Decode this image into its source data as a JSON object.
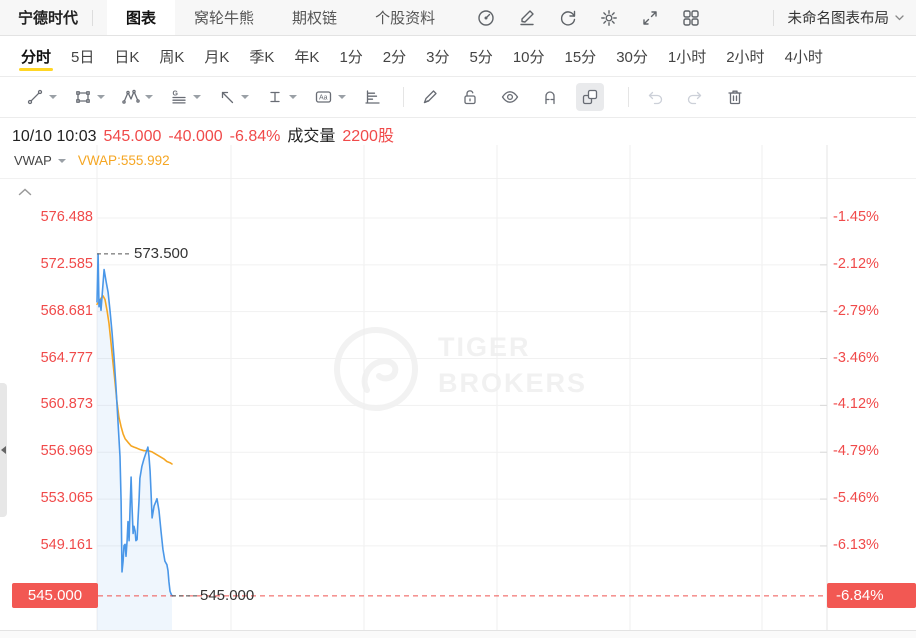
{
  "colors": {
    "red_text": "#f04a4a",
    "red_badge": "#f25853",
    "red_dashed_line": "#ef5350",
    "price_line_blue": "#4a97e8",
    "vwap_orange": "#f5a623",
    "active_tab_underline_yellow": "#ffd625"
  },
  "top_bar": {
    "symbol": "宁德时代",
    "tabs": [
      {
        "label": "图表",
        "active": true
      },
      {
        "label": "窝轮牛熊",
        "active": false
      },
      {
        "label": "期权链",
        "active": false
      },
      {
        "label": "个股资料",
        "active": false
      }
    ],
    "icons": [
      "gauge-icon",
      "edit-note-icon",
      "refresh-icon",
      "settings-gear-icon",
      "fullscreen-icon",
      "multi-layout-grid-icon"
    ],
    "layout_name": "未命名图表布局"
  },
  "timeframes": [
    {
      "label": "分时",
      "active": true
    },
    {
      "label": "5日"
    },
    {
      "label": "日K"
    },
    {
      "label": "周K"
    },
    {
      "label": "月K"
    },
    {
      "label": "季K"
    },
    {
      "label": "年K"
    },
    {
      "label": "1分"
    },
    {
      "label": "2分"
    },
    {
      "label": "3分"
    },
    {
      "label": "5分"
    },
    {
      "label": "10分"
    },
    {
      "label": "15分"
    },
    {
      "label": "30分"
    },
    {
      "label": "1小时"
    },
    {
      "label": "2小时"
    },
    {
      "label": "4小时"
    }
  ],
  "toolbar": {
    "tools": [
      "trend-line",
      "shape-rectangle",
      "pattern-waves",
      "gann-fib-lines",
      "arrow-marker",
      "price-range",
      "text-label",
      "volume-profile"
    ],
    "actions": [
      {
        "name": "draw-brush"
      },
      {
        "name": "lock-drawings"
      },
      {
        "name": "show-hide-drawings"
      },
      {
        "name": "magnet-mode"
      },
      {
        "name": "group-shapes",
        "active": true
      },
      {
        "name": "undo",
        "disabled": true
      },
      {
        "name": "redo",
        "disabled": true
      },
      {
        "name": "delete-drawings"
      }
    ]
  },
  "quote": {
    "datetime": "10/10 10:03",
    "price": "545.000",
    "change": "-40.000",
    "change_pct": "-6.84%",
    "volume_label": "成交量",
    "volume": "2200股"
  },
  "indicator": {
    "name": "VWAP",
    "value": "VWAP:555.992"
  },
  "watermark": {
    "line1": "TIGER",
    "line2": "BROKERS"
  },
  "chart_data": {
    "type": "line",
    "x_unit": "minutes since session open 09:30, session shown ends 10/10 10:03",
    "grid": true,
    "ylim": [
      543.5,
      578.5
    ],
    "y_axis_left_ticks": [
      "576.488",
      "572.585",
      "568.681",
      "564.777",
      "560.873",
      "556.969",
      "553.065",
      "549.161"
    ],
    "y_axis_left_badge": "545.000",
    "y_axis_right_ticks": [
      "-1.45%",
      "-2.12%",
      "-2.79%",
      "-3.46%",
      "-4.12%",
      "-4.79%",
      "-5.46%",
      "-6.13%"
    ],
    "y_axis_right_badge": "-6.84%",
    "annotations": {
      "high_value": 573.5,
      "high_label": "573.500",
      "last_value": 545.0,
      "last_label": "545.000"
    },
    "series": [
      {
        "name": "price",
        "color": "#4a97e8",
        "fill": "rgba(74,151,232,0.09)",
        "points": [
          [
            0,
            569.5
          ],
          [
            0.5,
            573.5
          ],
          [
            0.9,
            569.1
          ],
          [
            1.4,
            569.7
          ],
          [
            1.8,
            568.8
          ],
          [
            3.2,
            572.2
          ],
          [
            4.1,
            571.2
          ],
          [
            5.0,
            570.3
          ],
          [
            5.9,
            568.7
          ],
          [
            6.8,
            567.0
          ],
          [
            7.7,
            564.9
          ],
          [
            8.6,
            562.4
          ],
          [
            9.5,
            559.5
          ],
          [
            10.4,
            556.6
          ],
          [
            10.9,
            552.9
          ],
          [
            11.3,
            547.0
          ],
          [
            11.8,
            547.9
          ],
          [
            12.2,
            549.2
          ],
          [
            12.7,
            549.3
          ],
          [
            13.1,
            548.3
          ],
          [
            13.6,
            549.6
          ],
          [
            14.0,
            551.2
          ],
          [
            14.5,
            549.6
          ],
          [
            14.9,
            552.1
          ],
          [
            15.4,
            554.9
          ],
          [
            15.8,
            552.5
          ],
          [
            16.3,
            550.2
          ],
          [
            16.7,
            550.8
          ],
          [
            17.2,
            550.4
          ],
          [
            17.6,
            549.6
          ],
          [
            18.1,
            549.7
          ],
          [
            18.5,
            551.2
          ],
          [
            19.0,
            552.9
          ],
          [
            19.4,
            554.8
          ],
          [
            20.3,
            555.8
          ],
          [
            21.2,
            556.4
          ],
          [
            22.1,
            556.9
          ],
          [
            23.0,
            557.4
          ],
          [
            23.5,
            556.6
          ],
          [
            24.0,
            555.4
          ],
          [
            24.4,
            553.7
          ],
          [
            24.9,
            551.5
          ],
          [
            25.8,
            552.5
          ],
          [
            26.7,
            552.9
          ],
          [
            27.1,
            553.1
          ],
          [
            28.0,
            552.1
          ],
          [
            28.9,
            550.4
          ],
          [
            29.8,
            548.9
          ],
          [
            30.7,
            547.9
          ],
          [
            31.6,
            547.6
          ],
          [
            32.1,
            547.1
          ],
          [
            32.5,
            546.2
          ],
          [
            33.0,
            545.4
          ],
          [
            33.4,
            545.2
          ],
          [
            33.9,
            545.0
          ]
        ]
      },
      {
        "name": "VWAP",
        "color": "#f5a623",
        "points": [
          [
            0,
            569.3
          ],
          [
            0.9,
            569.5
          ],
          [
            1.8,
            569.8
          ],
          [
            2.7,
            570.0
          ],
          [
            3.6,
            569.7
          ],
          [
            4.5,
            568.8
          ],
          [
            5.4,
            567.7
          ],
          [
            6.3,
            566.2
          ],
          [
            7.2,
            564.5
          ],
          [
            8.1,
            562.9
          ],
          [
            9.0,
            561.2
          ],
          [
            9.9,
            559.9
          ],
          [
            10.9,
            559.1
          ],
          [
            11.8,
            558.5
          ],
          [
            12.7,
            558.1
          ],
          [
            14.0,
            557.8
          ],
          [
            15.4,
            557.5
          ],
          [
            16.7,
            557.4
          ],
          [
            18.1,
            557.3
          ],
          [
            19.4,
            557.2
          ],
          [
            21.2,
            557.1
          ],
          [
            23.0,
            557.1
          ],
          [
            24.9,
            557.0
          ],
          [
            26.7,
            556.8
          ],
          [
            28.5,
            556.6
          ],
          [
            30.3,
            556.4
          ],
          [
            31.6,
            556.2
          ],
          [
            33.0,
            556.1
          ],
          [
            33.9,
            555.992
          ]
        ]
      }
    ]
  }
}
